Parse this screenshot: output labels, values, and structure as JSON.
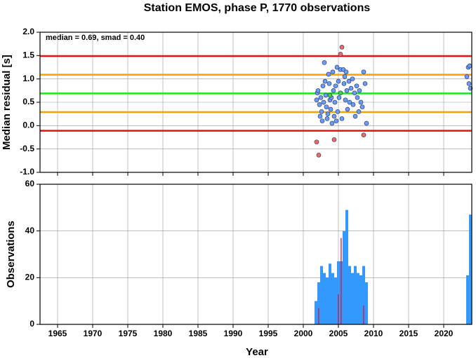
{
  "chart_data": [
    {
      "type": "scatter",
      "title": "Station EMOS, phase P, 1770 observations",
      "y_label": "Median residual [s]",
      "annotation": "median = 0.69, smad = 0.40",
      "xlim": [
        1962.5,
        2024
      ],
      "ylim": [
        -1,
        2
      ],
      "yticks": [
        {
          "value": -1,
          "label": "-1.0"
        },
        -0.5,
        {
          "value": 0,
          "label": "0.0"
        },
        0.5,
        {
          "value": 1,
          "label": "1.0"
        },
        1.5,
        {
          "value": 2,
          "label": "2.0"
        }
      ],
      "grid": true,
      "hlines": [
        {
          "value": 1.49,
          "color": "#e81010"
        },
        {
          "value": 1.09,
          "color": "#f5a300"
        },
        {
          "value": 0.69,
          "color": "#22e022"
        },
        {
          "value": 0.29,
          "color": "#f5a300"
        },
        {
          "value": -0.11,
          "color": "#e81010"
        }
      ],
      "series": [
        {
          "color": "#6c9bef",
          "x": [
            2001.9,
            2002.0,
            2002.1,
            2002.3,
            2002.4,
            2002.5,
            2002.6,
            2002.7,
            2002.8,
            2002.9,
            2003.0,
            2003.1,
            2003.2,
            2003.3,
            2003.4,
            2003.5,
            2003.6,
            2003.7,
            2003.8,
            2003.9,
            2004.0,
            2004.1,
            2004.2,
            2004.3,
            2004.4,
            2004.5,
            2004.6,
            2004.7,
            2004.8,
            2004.9,
            2005.0,
            2005.1,
            2005.3,
            2005.5,
            2005.7,
            2005.8,
            2005.9,
            2006.0,
            2006.1,
            2006.2,
            2006.3,
            2006.5,
            2006.6,
            2006.8,
            2007.0,
            2007.1,
            2007.3,
            2007.4,
            2007.6,
            2007.7,
            2007.9,
            2008.0,
            2008.2,
            2008.4,
            2008.6,
            2008.8,
            2009.0,
            2023.3,
            2023.5,
            2023.6,
            2023.7,
            2023.8
          ],
          "values": [
            0.55,
            0.7,
            0.75,
            0.45,
            0.2,
            0.6,
            0.3,
            0.1,
            0.85,
            0.5,
            1.35,
            0.95,
            0.65,
            0.4,
            0.15,
            0.25,
            1.1,
            0.9,
            0.55,
            0.35,
            0.6,
            0.05,
            1.15,
            0.75,
            0.2,
            0.5,
            0.85,
            0.1,
            1.25,
            0.3,
            0.95,
            0.6,
            1.2,
            0.15,
            1.2,
            0.9,
            1.05,
            0.55,
            1.15,
            0.75,
            0.35,
            0.95,
            0.5,
            0.8,
            1.0,
            0.45,
            0.7,
            0.2,
            0.85,
            0.6,
            0.3,
            0.75,
            0.5,
            0.4,
            1.15,
            0.9,
            0.05,
            1.05,
            1.25,
            0.9,
            1.28,
            0.8
          ]
        },
        {
          "color": "#35d835",
          "x": [
            2003.8,
            2005.3
          ],
          "values": [
            0.65,
            0.7
          ]
        },
        {
          "color": "#f06a5a",
          "x": [
            2001.9,
            2002.2,
            2004.4,
            2005.3,
            2005.5,
            2008.6
          ],
          "values": [
            -0.35,
            -0.63,
            -0.3,
            1.53,
            1.68,
            -0.2
          ]
        }
      ]
    },
    {
      "type": "histogram",
      "y_label": "Observations",
      "x_label": "Year",
      "xlim": [
        1962.5,
        2024
      ],
      "ylim": [
        0,
        60
      ],
      "xticks": [
        1965,
        1970,
        1975,
        1980,
        1985,
        1990,
        1995,
        2000,
        2005,
        2010,
        2015,
        2020
      ],
      "yticks": [
        0,
        20,
        40,
        60
      ],
      "grid": true,
      "bins": [
        2001.6,
        2002,
        2002.4,
        2002.8,
        2003.2,
        2003.6,
        2004,
        2004.4,
        2004.8,
        2005.2,
        2005.6,
        2006,
        2006.4,
        2006.8,
        2007.2,
        2007.6,
        2008,
        2008.4,
        2008.8,
        2009.2,
        2009.6,
        2010,
        2010.4,
        2010.8,
        2011.2,
        2011.6,
        2012,
        2012.4,
        2012.8,
        2013.2,
        2013.6,
        2014,
        2014.4,
        2014.8,
        2015.2,
        2015.6,
        2016,
        2016.4,
        2016.8,
        2017.2,
        2017.6,
        2018,
        2018.4,
        2018.8,
        2019.2,
        2019.6,
        2020,
        2020.4,
        2020.8,
        2021.2,
        2021.6,
        2022,
        2022.4,
        2022.8,
        2023.2,
        2023.6,
        2024
      ],
      "series": [
        {
          "color": "#3399ff",
          "values": [
            10,
            18,
            25,
            22,
            20,
            26,
            22,
            20,
            27,
            27,
            40,
            49,
            25,
            22,
            25,
            22,
            21,
            25,
            18,
            0,
            0,
            0,
            0,
            0,
            0,
            0,
            0,
            0,
            0,
            0,
            0,
            0,
            0,
            0,
            0,
            0,
            0,
            0,
            0,
            0,
            0,
            0,
            0,
            0,
            0,
            0,
            0,
            0,
            0,
            0,
            0,
            0,
            0,
            0,
            21,
            47
          ]
        },
        {
          "color": "#d02040",
          "values": [
            0,
            7,
            0,
            0,
            0,
            0,
            0,
            0,
            13,
            37,
            0,
            0,
            0,
            0,
            0,
            0,
            0,
            8,
            0,
            0,
            0,
            0,
            0,
            0,
            0,
            0,
            0,
            0,
            0,
            0,
            0,
            0,
            0,
            0,
            0,
            0,
            0,
            0,
            0,
            0,
            0,
            0,
            0,
            0,
            0,
            0,
            0,
            0,
            0,
            0,
            0,
            0,
            0,
            0,
            0,
            0
          ]
        }
      ]
    }
  ]
}
